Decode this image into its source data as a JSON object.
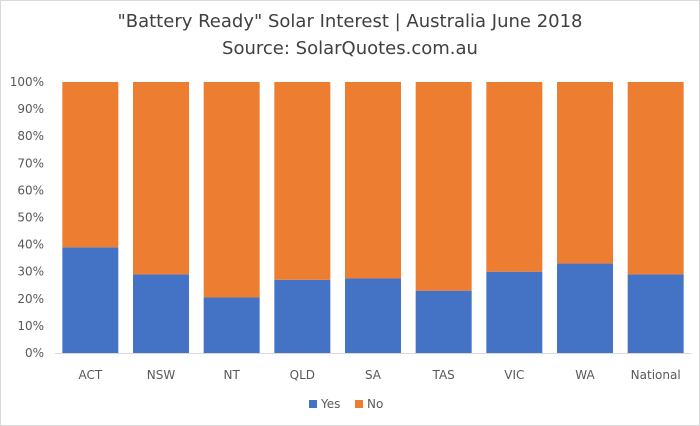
{
  "chart_data": {
    "type": "bar",
    "stacked": true,
    "title": "\"Battery Ready\" Solar Interest  |  Australia June 2018",
    "subtitle": "Source: SolarQuotes.com.au",
    "categories": [
      "ACT",
      "NSW",
      "NT",
      "QLD",
      "SA",
      "TAS",
      "VIC",
      "WA",
      "National"
    ],
    "series": [
      {
        "name": "Yes",
        "color": "#4472c4",
        "values": [
          0.39,
          0.29,
          0.205,
          0.27,
          0.275,
          0.23,
          0.3,
          0.33,
          0.29
        ]
      },
      {
        "name": "No",
        "color": "#ed7d31",
        "values": [
          0.61,
          0.71,
          0.795,
          0.73,
          0.725,
          0.77,
          0.7,
          0.67,
          0.71
        ]
      }
    ],
    "ylim": [
      0,
      1
    ],
    "yticks": [
      "0%",
      "10%",
      "20%",
      "30%",
      "40%",
      "50%",
      "60%",
      "70%",
      "80%",
      "90%",
      "100%"
    ],
    "grid": false,
    "legend_position": "bottom"
  }
}
